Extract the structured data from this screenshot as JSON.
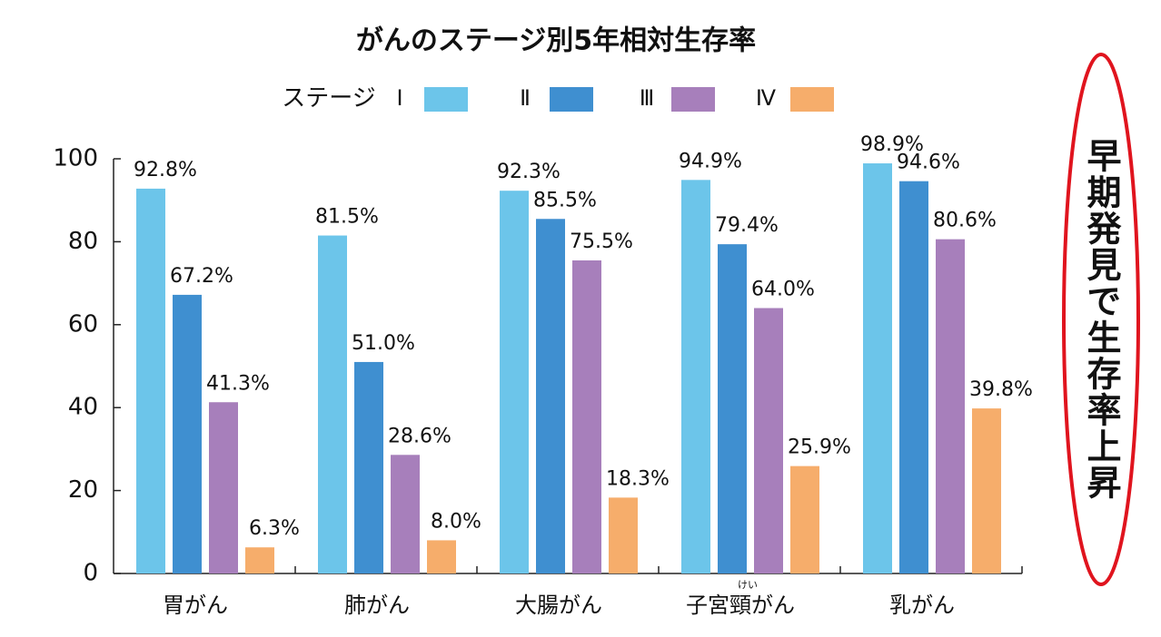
{
  "chart_data": {
    "type": "bar",
    "title": "がんのステージ別5年相対生存率",
    "legend_title": "ステージ",
    "categories": [
      "胃がん",
      "肺がん",
      "大腸がん",
      "子宮頸がん",
      "乳がん"
    ],
    "ruby": {
      "text": "けい",
      "category": 3
    },
    "series": [
      {
        "name": "Ⅰ",
        "color": "#6cc5ea",
        "values": [
          92.8,
          81.5,
          92.3,
          94.9,
          98.9
        ],
        "value_labels": [
          "92.8%",
          "81.5%",
          "92.3%",
          "94.9%",
          "98.9%"
        ]
      },
      {
        "name": "Ⅱ",
        "color": "#3f8fd0",
        "values": [
          67.2,
          51.0,
          85.5,
          79.4,
          94.6
        ],
        "value_labels": [
          "67.2%",
          "51.0%",
          "85.5%",
          "79.4%",
          "94.6%"
        ]
      },
      {
        "name": "Ⅲ",
        "color": "#a77fbb",
        "values": [
          41.3,
          28.6,
          75.5,
          64.0,
          80.6
        ],
        "value_labels": [
          "41.3%",
          "28.6%",
          "75.5%",
          "64.0%",
          "80.6%"
        ]
      },
      {
        "name": "Ⅳ",
        "color": "#f6ad6b",
        "values": [
          6.3,
          8.0,
          18.3,
          25.9,
          39.8
        ],
        "value_labels": [
          "6.3%",
          "8.0%",
          "18.3%",
          "25.9%",
          "39.8%"
        ]
      }
    ],
    "ylim": [
      0,
      100
    ],
    "yticks": [
      0,
      20,
      40,
      60,
      80,
      100
    ],
    "annotation": "早期発見で生存率上昇"
  }
}
